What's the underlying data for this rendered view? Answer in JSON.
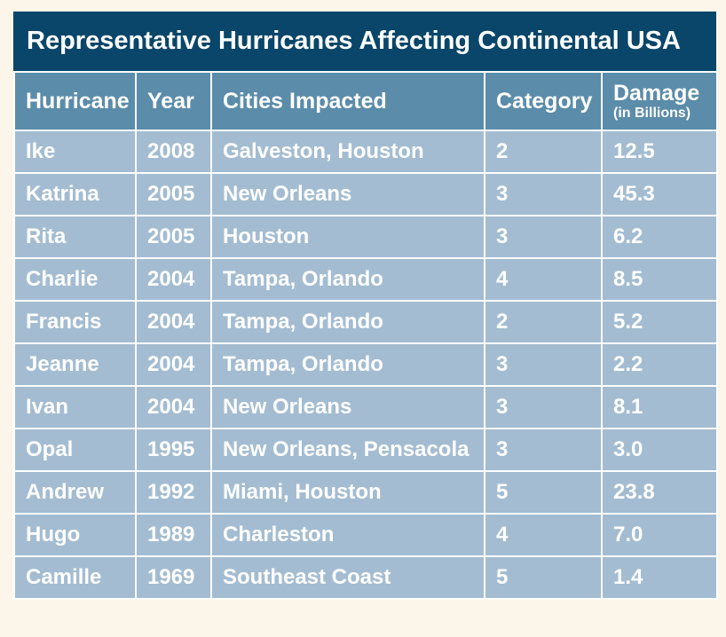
{
  "title": "Representative Hurricanes Affecting Continental USA",
  "colors": {
    "page_background": "#fcf5e9",
    "title_bar": "#094669",
    "header_row": "#5b8caa",
    "data_row": "#a3bcd1",
    "grid_lines": "#ffffff",
    "text": "#ffffff"
  },
  "chart_data": {
    "type": "table",
    "title": "Representative Hurricanes Affecting Continental USA",
    "columns": [
      {
        "label": "Hurricane",
        "sublabel": ""
      },
      {
        "label": "Year",
        "sublabel": ""
      },
      {
        "label": "Cities Impacted",
        "sublabel": ""
      },
      {
        "label": "Category",
        "sublabel": ""
      },
      {
        "label": "Damage",
        "sublabel": "(in Billions)"
      }
    ],
    "rows": [
      [
        "Ike",
        "2008",
        "Galveston, Houston",
        "2",
        "12.5"
      ],
      [
        "Katrina",
        "2005",
        "New Orleans",
        "3",
        "45.3"
      ],
      [
        "Rita",
        "2005",
        "Houston",
        "3",
        "6.2"
      ],
      [
        "Charlie",
        "2004",
        "Tampa, Orlando",
        "4",
        "8.5"
      ],
      [
        "Francis",
        "2004",
        "Tampa, Orlando",
        "2",
        "5.2"
      ],
      [
        "Jeanne",
        "2004",
        "Tampa, Orlando",
        "3",
        "2.2"
      ],
      [
        "Ivan",
        "2004",
        "New Orleans",
        "3",
        "8.1"
      ],
      [
        "Opal",
        "1995",
        "New Orleans, Pensacola",
        "3",
        "3.0"
      ],
      [
        "Andrew",
        "1992",
        "Miami, Houston",
        "5",
        "23.8"
      ],
      [
        "Hugo",
        "1989",
        "Charleston",
        "4",
        "7.0"
      ],
      [
        "Camille",
        "1969",
        "Southeast Coast",
        "5",
        "1.4"
      ]
    ]
  }
}
